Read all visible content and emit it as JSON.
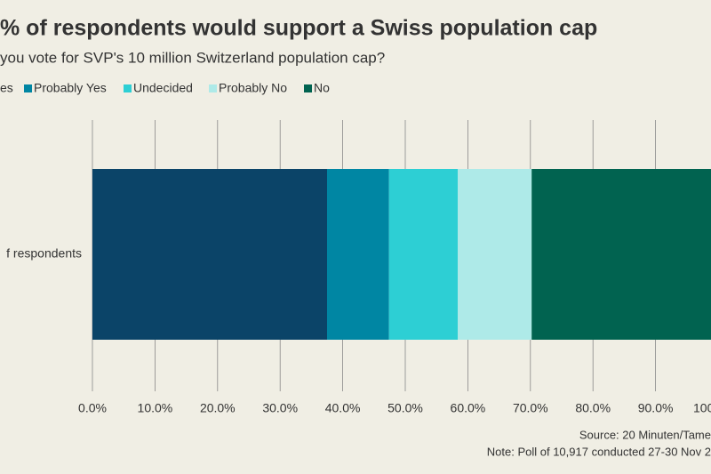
{
  "chart_data": {
    "type": "stacked-bar-horizontal",
    "title": "% of respondents would support a Swiss population cap",
    "subtitle": "you vote for SVP's 10 million Switzerland population cap?",
    "categories": [
      "f respondents"
    ],
    "series": [
      {
        "name": "es",
        "color": "#0b4468",
        "values": [
          37.5
        ]
      },
      {
        "name": "Probably Yes",
        "color": "#0086a3",
        "values": [
          9.9
        ]
      },
      {
        "name": "Undecided",
        "color": "#2dcfd4",
        "values": [
          11.0
        ]
      },
      {
        "name": "Probably No",
        "color": "#aeeae8",
        "values": [
          11.8
        ]
      },
      {
        "name": "No",
        "color": "#016350",
        "values": [
          29.8
        ]
      }
    ],
    "xlim": [
      0,
      100
    ],
    "xticks": [
      {
        "value": 0,
        "label": "0.0%"
      },
      {
        "value": 10,
        "label": "10.0%"
      },
      {
        "value": 20,
        "label": "20.0%"
      },
      {
        "value": 30,
        "label": "30.0%"
      },
      {
        "value": 40,
        "label": "40.0%"
      },
      {
        "value": 50,
        "label": "50.0%"
      },
      {
        "value": 60,
        "label": "60.0%"
      },
      {
        "value": 70,
        "label": "70.0%"
      },
      {
        "value": 80,
        "label": "80.0%"
      },
      {
        "value": 90,
        "label": "90.0%"
      },
      {
        "value": 100,
        "label": "100"
      }
    ],
    "grid": true,
    "source": "Source: 20 Minuten/Tame",
    "note": "Note: Poll of 10,917 conducted 27-30 Nov 2"
  }
}
